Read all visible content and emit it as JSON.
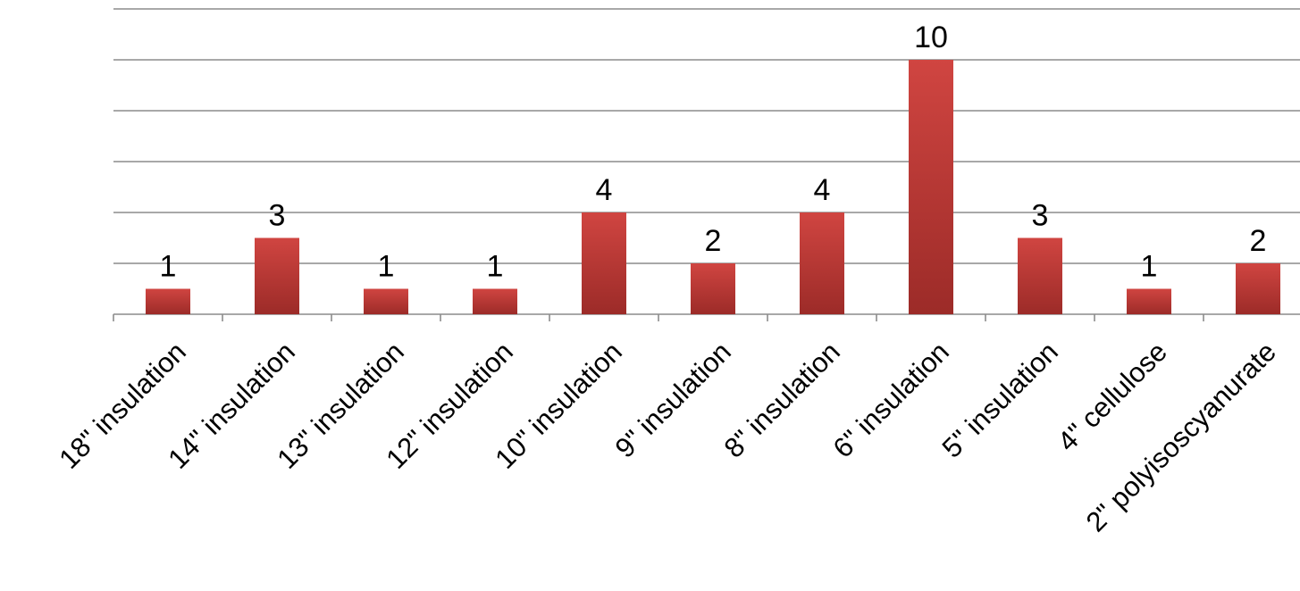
{
  "chart_data": {
    "type": "bar",
    "categories": [
      "18\" insulation",
      "14\" insulation",
      "13\" insulation",
      "12\" insulation",
      "10\" insulation",
      "9\" insulation",
      "8\" insulation",
      "6\" insulation",
      "5\" insulation",
      "4\" cellulose",
      "2\" polyisoscyanurate"
    ],
    "values": [
      1,
      3,
      1,
      1,
      4,
      2,
      4,
      10,
      3,
      1,
      2
    ],
    "data_labels": [
      "1",
      "3",
      "1",
      "1",
      "4",
      "2",
      "4",
      "10",
      "3",
      "1",
      "2"
    ],
    "title": "",
    "xlabel": "",
    "ylabel": "",
    "ylim": [
      0,
      12
    ],
    "y_tick_labels_shown": false,
    "grid": true,
    "legend": "none",
    "colors": {
      "bar_top": "#d04541",
      "bar_bottom": "#9c2b28",
      "grid": "#8c8c8c",
      "text": "#000000"
    }
  }
}
